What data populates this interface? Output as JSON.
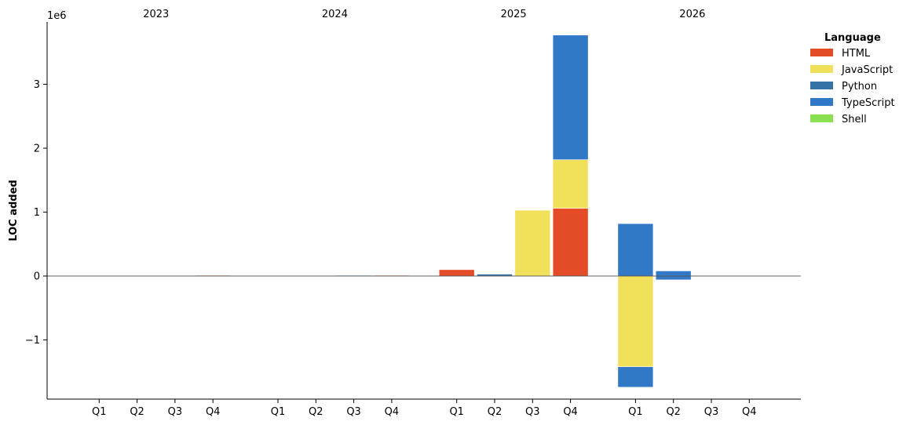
{
  "chart_data": {
    "type": "bar",
    "stacked": true,
    "ylabel": "LOC added",
    "yscale_label": "1e6",
    "ylim": [
      -1.9,
      3.95
    ],
    "yticks": [
      -1,
      0,
      1,
      2,
      3
    ],
    "ytick_labels": [
      "−1",
      "0",
      "1",
      "2",
      "3"
    ],
    "years": [
      "2023",
      "2024",
      "2025",
      "2026"
    ],
    "quarters": [
      "Q1",
      "Q2",
      "Q3",
      "Q4"
    ],
    "legend": {
      "title": "Language",
      "placement": "top-right",
      "items": [
        {
          "name": "HTML",
          "color": "#e34c26"
        },
        {
          "name": "JavaScript",
          "color": "#f1e05a"
        },
        {
          "name": "Python",
          "color": "#3572A5"
        },
        {
          "name": "TypeScript",
          "color": "#3178c6"
        },
        {
          "name": "Shell",
          "color": "#89e051"
        }
      ]
    },
    "series": [
      {
        "name": "HTML",
        "color": "#e34c26",
        "values": [
          0,
          0,
          0,
          0.01,
          0,
          0,
          0,
          0.01,
          0.1,
          0,
          0,
          1.06,
          0,
          0,
          0,
          0
        ]
      },
      {
        "name": "JavaScript",
        "color": "#f1e05a",
        "values": [
          0,
          0,
          0,
          0,
          0,
          0,
          0,
          0,
          0,
          0,
          1.03,
          0.76,
          -1.42,
          0,
          0,
          0
        ]
      },
      {
        "name": "Python",
        "color": "#3572A5",
        "values": [
          0,
          0,
          0,
          0,
          0,
          0,
          0.01,
          0,
          0,
          0.03,
          0,
          0,
          0,
          0,
          0,
          0
        ]
      },
      {
        "name": "TypeScript",
        "color": "#3178c6",
        "values": [
          0,
          0,
          0,
          0,
          0,
          0,
          0,
          0,
          0,
          0,
          0,
          1.95,
          0.82,
          0.08,
          0,
          0
        ],
        "negative_values": [
          0,
          0,
          0,
          0,
          0,
          0,
          0,
          0,
          0,
          0,
          0,
          0,
          -0.32,
          -0.06,
          0,
          0
        ]
      },
      {
        "name": "Shell",
        "color": "#89e051",
        "values": [
          0,
          0,
          0,
          0,
          0,
          0,
          0,
          0,
          0,
          0,
          0,
          0,
          0,
          0,
          0,
          0
        ]
      }
    ]
  }
}
